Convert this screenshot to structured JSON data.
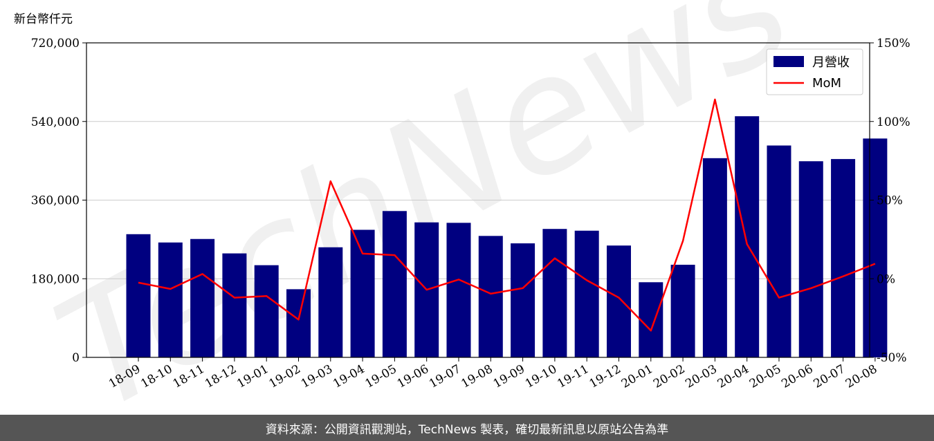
{
  "unit_label": "新台幣仟元",
  "watermark": "TechNews",
  "footer": {
    "source": "資料來源：公開資訊觀測站，TechNews 製表，確切最新訊息以原站公告為準"
  },
  "colors": {
    "bar": "#000080",
    "line": "#ff0000",
    "footer_bg": "#555555"
  },
  "chart_data": {
    "type": "bar",
    "categories": [
      "18-09",
      "18-10",
      "18-11",
      "18-12",
      "19-01",
      "19-02",
      "19-03",
      "19-04",
      "19-05",
      "19-06",
      "19-07",
      "19-08",
      "19-09",
      "19-10",
      "19-11",
      "19-12",
      "20-01",
      "20-02",
      "20-03",
      "20-04",
      "20-05",
      "20-06",
      "20-07",
      "20-08"
    ],
    "series": [
      {
        "name": "月營收",
        "type": "bar",
        "axis": "left",
        "values": [
          282000,
          263000,
          271000,
          238000,
          211000,
          156000,
          252000,
          292000,
          335000,
          309000,
          308000,
          278000,
          261000,
          294000,
          290000,
          256000,
          172000,
          212000,
          456000,
          552000,
          485000,
          449000,
          454000,
          501000
        ]
      },
      {
        "name": "MoM",
        "type": "line",
        "axis": "right",
        "values": [
          -2.5,
          -6.5,
          3.0,
          -12.0,
          -11.0,
          -26.0,
          62.0,
          16.0,
          15.0,
          -7.0,
          -0.5,
          -9.5,
          -6.0,
          13.0,
          -1.0,
          -12.0,
          -33.0,
          24.0,
          114.0,
          22.0,
          -12.0,
          -6.0,
          1.5,
          9.5
        ]
      }
    ],
    "y_left": {
      "ylim": [
        0,
        720000
      ],
      "ticks": [
        0,
        180000,
        360000,
        540000,
        720000
      ],
      "tick_labels": [
        "0",
        "180,000",
        "360,000",
        "540,000",
        "720,000"
      ]
    },
    "y_right": {
      "ylim": [
        -50,
        150
      ],
      "ticks": [
        -50,
        0,
        50,
        100,
        150
      ],
      "tick_labels": [
        "-50%",
        "0%",
        "50%",
        "100%",
        "150%"
      ]
    },
    "grid": true,
    "legend": "top-right"
  }
}
